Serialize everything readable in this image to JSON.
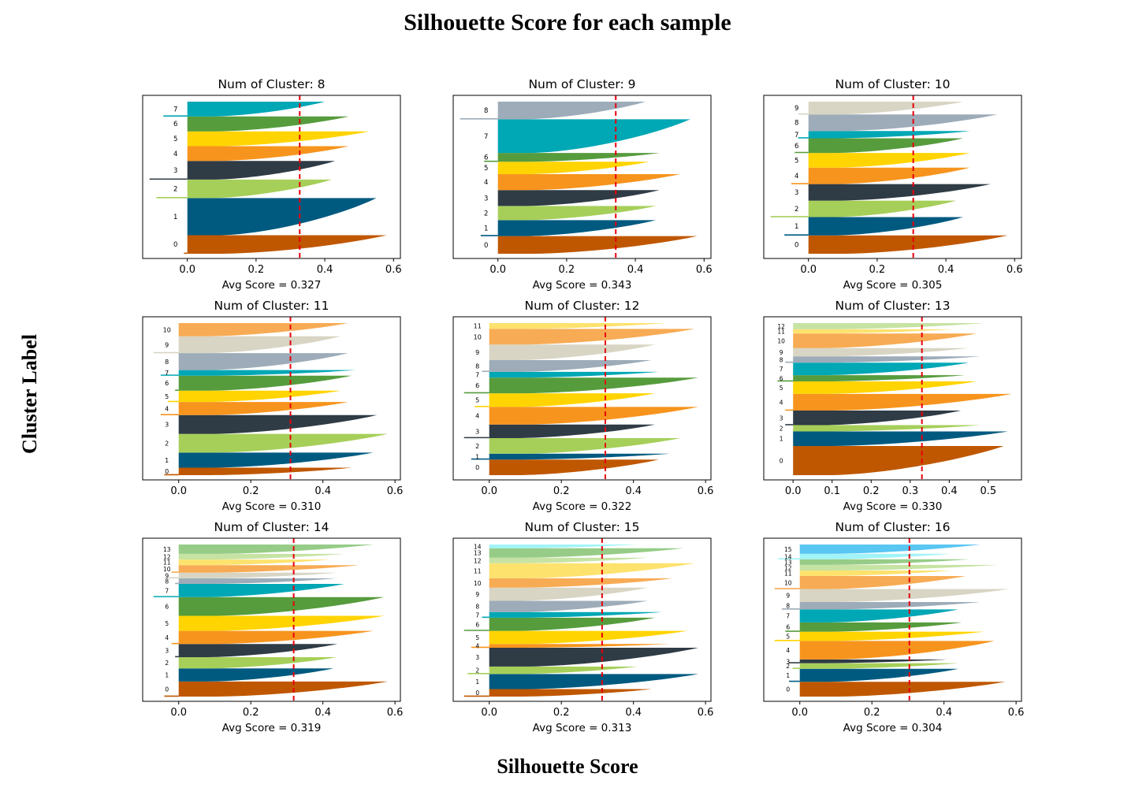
{
  "figure": {
    "title": "Silhouette Score for each sample",
    "xlabel": "Silhouette Score",
    "ylabel": "Cluster Label"
  },
  "palette": [
    "#bf5700",
    "#005a80",
    "#a6cf5a",
    "#2f3b45",
    "#f7941d",
    "#ffd400",
    "#569c3d",
    "#00a7b5",
    "#9dacb8",
    "#d8d5c4",
    "#f7ab54",
    "#fde26e",
    "#c6e3a3",
    "#96cc87",
    "#a1f4f8",
    "#5ac6f2"
  ],
  "chart_data": [
    {
      "type": "silhouette",
      "title": "Num of Cluster: 8",
      "avg_label": "Avg Score = 0.327",
      "avg_score": 0.327,
      "xlim": [
        -0.13,
        0.62
      ],
      "xticks": [
        0.0,
        0.2,
        0.4,
        0.6
      ],
      "xtick_labels": [
        "0.0",
        "0.2",
        "0.4",
        "0.6"
      ],
      "labels": [
        "0",
        "1",
        "2",
        "3",
        "4",
        "5",
        "6",
        "7"
      ],
      "sizes": [
        10,
        20,
        10,
        10,
        8,
        8,
        8,
        8
      ],
      "max": [
        0.58,
        0.55,
        0.42,
        0.43,
        0.47,
        0.53,
        0.47,
        0.4
      ],
      "min": [
        -0.01,
        0.0,
        -0.09,
        -0.11,
        0.0,
        0.0,
        0.0,
        -0.07
      ]
    },
    {
      "type": "silhouette",
      "title": "Num of Cluster: 9",
      "avg_label": "Avg Score = 0.343",
      "avg_score": 0.343,
      "xlim": [
        -0.13,
        0.62
      ],
      "xticks": [
        0.0,
        0.2,
        0.4,
        0.6
      ],
      "xtick_labels": [
        "0.0",
        "0.2",
        "0.4",
        "0.6"
      ],
      "labels": [
        "0",
        "1",
        "2",
        "3",
        "4",
        "5",
        "6",
        "7",
        "8"
      ],
      "sizes": [
        10,
        9,
        8,
        9,
        9,
        7,
        5,
        19,
        10
      ],
      "max": [
        0.58,
        0.46,
        0.46,
        0.47,
        0.53,
        0.44,
        0.47,
        0.56,
        0.43
      ],
      "min": [
        0.0,
        -0.05,
        0.0,
        0.0,
        0.0,
        0.0,
        -0.04,
        0.0,
        -0.11
      ]
    },
    {
      "type": "silhouette",
      "title": "Num of Cluster: 10",
      "avg_label": "Avg Score = 0.305",
      "avg_score": 0.305,
      "xlim": [
        -0.13,
        0.62
      ],
      "xticks": [
        0.0,
        0.2,
        0.4,
        0.6
      ],
      "xtick_labels": [
        "0.0",
        "0.2",
        "0.4",
        "0.6"
      ],
      "labels": [
        "0",
        "1",
        "2",
        "3",
        "4",
        "5",
        "6",
        "7",
        "8",
        "9"
      ],
      "sizes": [
        10,
        10,
        9,
        9,
        9,
        8,
        8,
        4,
        9,
        7
      ],
      "max": [
        0.58,
        0.45,
        0.43,
        0.53,
        0.47,
        0.47,
        0.45,
        0.47,
        0.55,
        0.45
      ],
      "min": [
        0.0,
        -0.07,
        -0.11,
        0.0,
        -0.05,
        0.0,
        -0.04,
        -0.03,
        0.0,
        -0.03
      ]
    },
    {
      "type": "silhouette",
      "title": "Num of Cluster: 11",
      "avg_label": "Avg Score = 0.310",
      "avg_score": 0.31,
      "xlim": [
        -0.1,
        0.615
      ],
      "xticks": [
        0.0,
        0.2,
        0.4,
        0.6
      ],
      "xtick_labels": [
        "0.0",
        "0.2",
        "0.4",
        "0.6"
      ],
      "labels": [
        "0",
        "1",
        "2",
        "3",
        "4",
        "5",
        "6",
        "7",
        "8",
        "9",
        "10"
      ],
      "sizes": [
        4,
        8,
        10,
        10,
        7,
        6,
        8,
        3,
        9,
        9,
        7
      ],
      "max": [
        0.48,
        0.54,
        0.58,
        0.55,
        0.47,
        0.45,
        0.48,
        0.49,
        0.47,
        0.45,
        0.47
      ],
      "min": [
        -0.04,
        0.0,
        0.0,
        0.0,
        -0.05,
        -0.03,
        -0.01,
        -0.05,
        0.0,
        -0.07,
        0.0
      ]
    },
    {
      "type": "silhouette",
      "title": "Num of Cluster: 12",
      "avg_label": "Avg Score = 0.322",
      "avg_score": 0.322,
      "xlim": [
        -0.1,
        0.615
      ],
      "xticks": [
        0.0,
        0.2,
        0.4,
        0.6
      ],
      "xtick_labels": [
        "0.0",
        "0.2",
        "0.4",
        "0.6"
      ],
      "labels": [
        "0",
        "1",
        "2",
        "3",
        "4",
        "5",
        "6",
        "7",
        "8",
        "9",
        "10",
        "11"
      ],
      "sizes": [
        8,
        3,
        8,
        7,
        9,
        7,
        8,
        3,
        6,
        8,
        8,
        3
      ],
      "max": [
        0.47,
        0.5,
        0.53,
        0.46,
        0.58,
        0.46,
        0.58,
        0.47,
        0.45,
        0.46,
        0.57,
        0.49
      ],
      "min": [
        0.0,
        -0.05,
        0.0,
        -0.07,
        0.0,
        -0.04,
        -0.07,
        0.0,
        -0.02,
        0.0,
        0.0,
        0.0
      ]
    },
    {
      "type": "silhouette",
      "title": "Num of Cluster: 13",
      "avg_label": "Avg Score = 0.330",
      "avg_score": 0.33,
      "xlim": [
        -0.075,
        0.585
      ],
      "xticks": [
        0.0,
        0.1,
        0.2,
        0.3,
        0.4,
        0.5
      ],
      "xtick_labels": [
        "0.0",
        "0.1",
        "0.2",
        "0.3",
        "0.4",
        "0.5"
      ],
      "labels": [
        "0",
        "1",
        "2",
        "3",
        "4",
        "5",
        "6",
        "7",
        "8",
        "9",
        "10",
        "11",
        "12"
      ],
      "sizes": [
        14,
        7,
        3,
        7,
        8,
        6,
        3,
        6,
        3,
        4,
        7,
        2,
        3
      ],
      "max": [
        0.54,
        0.55,
        0.48,
        0.43,
        0.56,
        0.47,
        0.44,
        0.45,
        0.48,
        0.45,
        0.47,
        0.41,
        0.49
      ],
      "min": [
        0.0,
        0.0,
        0.0,
        -0.02,
        -0.02,
        0.0,
        -0.04,
        0.0,
        -0.02,
        0.0,
        0.0,
        0.0,
        0.0
      ]
    },
    {
      "type": "silhouette",
      "title": "Num of Cluster: 14",
      "avg_label": "Avg Score = 0.319",
      "avg_score": 0.319,
      "xlim": [
        -0.1,
        0.615
      ],
      "xticks": [
        0.0,
        0.2,
        0.4,
        0.6
      ],
      "xtick_labels": [
        "0.0",
        "0.2",
        "0.4",
        "0.6"
      ],
      "labels": [
        "0",
        "1",
        "2",
        "3",
        "4",
        "5",
        "6",
        "7",
        "8",
        "9",
        "10",
        "11",
        "12",
        "13"
      ],
      "sizes": [
        8,
        7,
        6,
        7,
        7,
        8,
        10,
        7,
        3,
        3,
        4,
        3,
        3,
        5
      ],
      "max": [
        0.58,
        0.43,
        0.44,
        0.44,
        0.54,
        0.57,
        0.57,
        0.46,
        0.44,
        0.44,
        0.5,
        0.42,
        0.46,
        0.54
      ],
      "min": [
        -0.04,
        0.0,
        0.0,
        -0.01,
        -0.02,
        0.0,
        0.0,
        -0.07,
        -0.01,
        -0.03,
        -0.02,
        0.0,
        0.0,
        0.0
      ]
    },
    {
      "type": "silhouette",
      "title": "Num of Cluster: 15",
      "avg_label": "Avg Score = 0.313",
      "avg_score": 0.313,
      "xlim": [
        -0.1,
        0.615
      ],
      "xticks": [
        0.0,
        0.2,
        0.4,
        0.6
      ],
      "xtick_labels": [
        "0.0",
        "0.2",
        "0.4",
        "0.6"
      ],
      "labels": [
        "0",
        "1",
        "2",
        "3",
        "4",
        "5",
        "6",
        "7",
        "8",
        "9",
        "10",
        "11",
        "12",
        "13",
        "14"
      ],
      "sizes": [
        4,
        8,
        4,
        10,
        2,
        7,
        7,
        3,
        6,
        7,
        5,
        8,
        3,
        5,
        2
      ],
      "max": [
        0.45,
        0.58,
        0.41,
        0.58,
        0.5,
        0.55,
        0.46,
        0.48,
        0.44,
        0.44,
        0.51,
        0.57,
        0.44,
        0.54,
        0.41
      ],
      "min": [
        -0.07,
        0.0,
        -0.06,
        0.0,
        -0.05,
        0.0,
        -0.07,
        -0.02,
        0.0,
        0.0,
        0.0,
        0.0,
        0.0,
        0.0,
        0.0
      ]
    },
    {
      "type": "silhouette",
      "title": "Num of Cluster: 16",
      "avg_label": "Avg Score = 0.304",
      "avg_score": 0.304,
      "xlim": [
        -0.1,
        0.615
      ],
      "xticks": [
        0.0,
        0.2,
        0.4,
        0.6
      ],
      "xtick_labels": [
        "0.0",
        "0.2",
        "0.4",
        "0.6"
      ],
      "labels": [
        "0",
        "1",
        "2",
        "3",
        "4",
        "5",
        "6",
        "7",
        "8",
        "9",
        "10",
        "11",
        "12",
        "13",
        "14",
        "15"
      ],
      "sizes": [
        8,
        7,
        3,
        2,
        10,
        5,
        5,
        7,
        4,
        7,
        7,
        3,
        3,
        3,
        3,
        5
      ],
      "max": [
        0.57,
        0.44,
        0.44,
        0.41,
        0.54,
        0.51,
        0.45,
        0.44,
        0.5,
        0.58,
        0.46,
        0.42,
        0.55,
        0.47,
        0.42,
        0.5
      ],
      "min": [
        0.0,
        -0.03,
        -0.02,
        -0.03,
        0.0,
        -0.07,
        -0.04,
        0.0,
        -0.05,
        0.0,
        -0.07,
        0.0,
        0.0,
        0.0,
        -0.06,
        0.0
      ]
    }
  ]
}
